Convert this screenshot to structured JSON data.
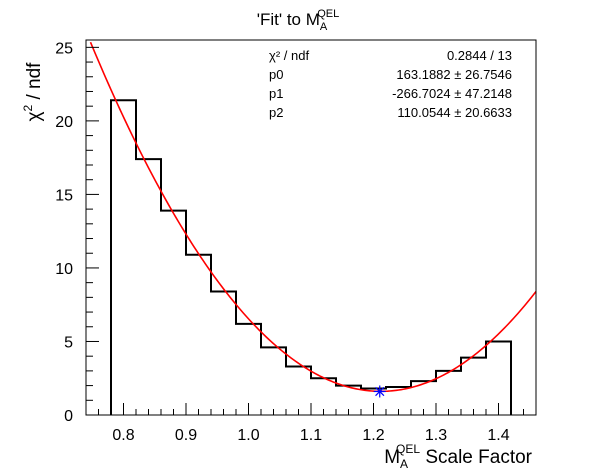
{
  "chart_data": {
    "type": "bar",
    "title": "'Fit' to M",
    "title_sub": "A",
    "title_sup": "QEL",
    "xlabel": "M",
    "xlabel_sub": "A",
    "xlabel_sup": "QEL",
    "xlabel_tail": " Scale Factor",
    "ylabel": "χ",
    "ylabel_sup": "2",
    "ylabel_tail": " / ndf",
    "xlim": [
      0.74,
      1.46
    ],
    "ylim": [
      0,
      25.5
    ],
    "xticks": [
      0.8,
      0.9,
      1.0,
      1.1,
      1.2,
      1.3,
      1.4
    ],
    "xtick_labels": [
      "0.8",
      "0.9",
      "1.0",
      "1.1",
      "1.2",
      "1.3",
      "1.4"
    ],
    "yticks": [
      0,
      5,
      10,
      15,
      20,
      25
    ],
    "ytick_labels": [
      "0",
      "5",
      "10",
      "15",
      "20",
      "25"
    ],
    "histogram": {
      "bin_edges": [
        0.78,
        0.82,
        0.86,
        0.9,
        0.94,
        0.98,
        1.02,
        1.06,
        1.1,
        1.14,
        1.18,
        1.22,
        1.26,
        1.3,
        1.34,
        1.38,
        1.42
      ],
      "values": [
        21.4,
        17.4,
        13.9,
        10.9,
        8.4,
        6.2,
        4.6,
        3.3,
        2.5,
        2.0,
        1.8,
        1.9,
        2.3,
        3.0,
        3.9,
        5.0
      ]
    },
    "fit": {
      "color": "#ff0000",
      "p0": 163.1882,
      "p1": -266.7024,
      "p2": 110.0544
    },
    "minimum_marker": {
      "x": 1.21,
      "y": 1.6,
      "color": "#0000ff"
    },
    "stats": {
      "rows": [
        {
          "name": "χ² / ndf",
          "value": "0.2844 / 13"
        },
        {
          "name": "p0",
          "value": "163.1882 ± 26.7546"
        },
        {
          "name": "p1",
          "value": "-266.7024 ± 47.2148"
        },
        {
          "name": "p2",
          "value": "110.0544 ± 20.6633"
        }
      ]
    }
  }
}
